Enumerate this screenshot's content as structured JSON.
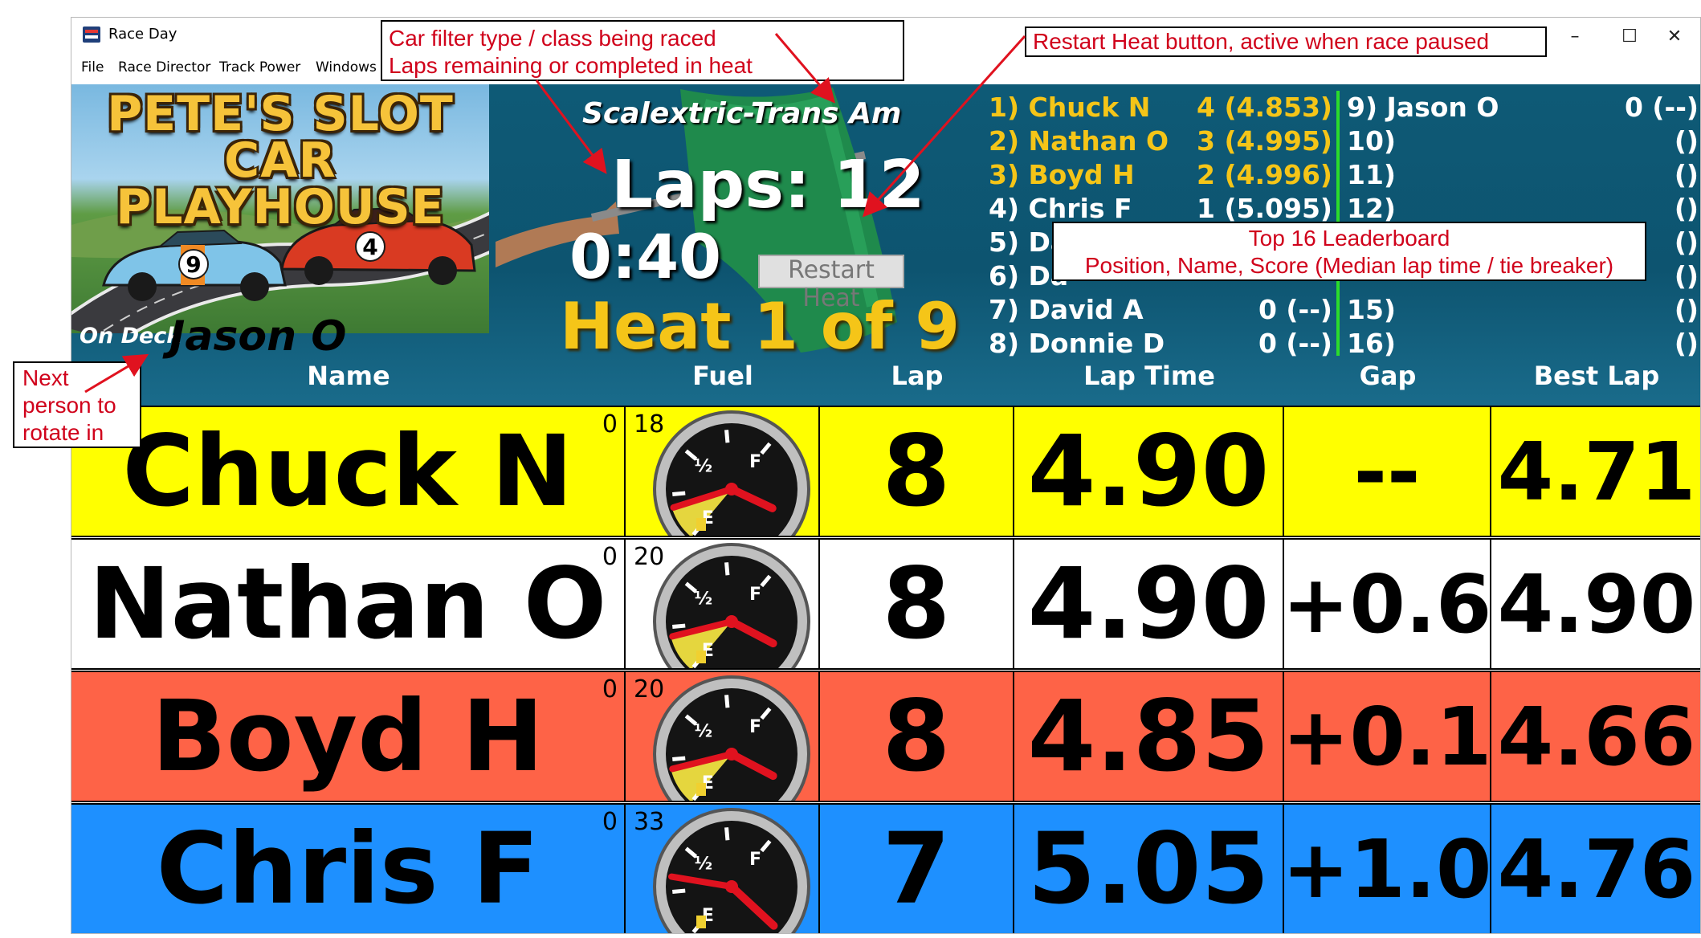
{
  "window": {
    "title": "Race Day",
    "controls": {
      "minimize": "–",
      "maximize": "☐",
      "close": "✕"
    }
  },
  "menu": [
    "File",
    "Race Director",
    "Track Power",
    "Windows"
  ],
  "header": {
    "logo_text": [
      "PETE'S SLOT CAR",
      "PLAYHOUSE"
    ],
    "on_deck_label": "On Deck",
    "on_deck_name": "Jason O",
    "race_class": "Scalextric-Trans Am",
    "laps": "Laps: 12",
    "timer": "0:40",
    "restart_heat_label": "Restart Heat",
    "heat": "Heat 1 of 9"
  },
  "leaderboard": {
    "left": [
      {
        "pos": "1)",
        "name": "Chuck N",
        "score": "4 (4.853)",
        "color": "#f5c518"
      },
      {
        "pos": "2)",
        "name": "Nathan O",
        "score": "3 (4.995)",
        "color": "#f5c518"
      },
      {
        "pos": "3)",
        "name": "Boyd H",
        "score": "2 (4.996)",
        "color": "#f5c518"
      },
      {
        "pos": "4)",
        "name": "Chris F",
        "score": "1 (5.095)",
        "color": "#ffffff"
      },
      {
        "pos": "5)",
        "name": "Da",
        "score": "",
        "color": "#ffffff"
      },
      {
        "pos": "6)",
        "name": "Da",
        "score": "",
        "color": "#ffffff"
      },
      {
        "pos": "7)",
        "name": "David A",
        "score": "0 (--)",
        "color": "#ffffff"
      },
      {
        "pos": "8)",
        "name": "Donnie D",
        "score": "0 (--)",
        "color": "#ffffff"
      }
    ],
    "right": [
      {
        "pos": "9)",
        "name": "Jason O",
        "score": "0 (--)"
      },
      {
        "pos": "10)",
        "name": "",
        "score": "()"
      },
      {
        "pos": "11)",
        "name": "",
        "score": "()"
      },
      {
        "pos": "12)",
        "name": "",
        "score": "()"
      },
      {
        "pos": "",
        "name": "",
        "score": "()"
      },
      {
        "pos": "",
        "name": "",
        "score": "()"
      },
      {
        "pos": "15)",
        "name": "",
        "score": "()"
      },
      {
        "pos": "16)",
        "name": "",
        "score": "()"
      }
    ]
  },
  "columns": [
    "Name",
    "Fuel",
    "Lap",
    "Lap Time",
    "Gap",
    "Best Lap"
  ],
  "racers": [
    {
      "name": "Chuck N",
      "penalty": "0",
      "fuel": "18",
      "fuel_level": 0.18,
      "lap": "8",
      "lap_time": "4.90",
      "gap": "--",
      "best_lap": "4.71",
      "bg": "#ffff00"
    },
    {
      "name": "Nathan O",
      "penalty": "0",
      "fuel": "20",
      "fuel_level": 0.2,
      "lap": "8",
      "lap_time": "4.90",
      "gap": "+0.6",
      "best_lap": "4.90",
      "bg": "#ffffff"
    },
    {
      "name": "Boyd H",
      "penalty": "0",
      "fuel": "20",
      "fuel_level": 0.2,
      "lap": "8",
      "lap_time": "4.85",
      "gap": "+0.1",
      "best_lap": "4.66",
      "bg": "#fe6347"
    },
    {
      "name": "Chris F",
      "penalty": "0",
      "fuel": "33",
      "fuel_level": 0.33,
      "lap": "7",
      "lap_time": "5.05",
      "gap": "+1.0",
      "best_lap": "4.76",
      "bg": "#1e90ff"
    }
  ],
  "gauge_labels": {
    "empty": "E",
    "half": "½",
    "full": "F"
  },
  "annotations": {
    "car_filter": [
      "Car filter type / class being raced",
      "Laps remaining or completed in heat"
    ],
    "restart": "Restart Heat button, active when race paused",
    "leaderboard": [
      "Top 16 Leaderboard",
      "Position, Name, Score (Median lap time / tie breaker)"
    ],
    "next_person": [
      "Next",
      "person to",
      "rotate in"
    ]
  }
}
